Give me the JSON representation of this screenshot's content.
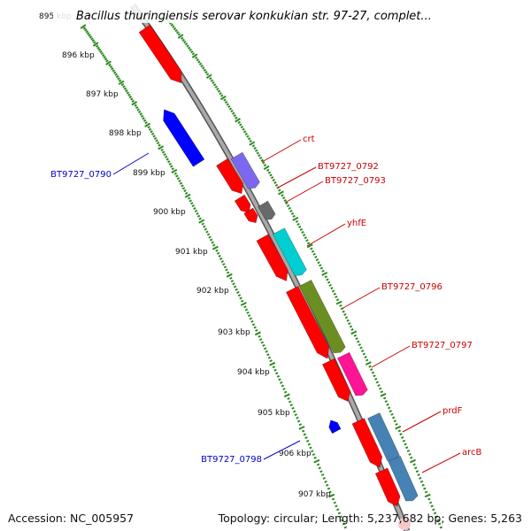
{
  "title": "Bacillus thuringiensis serovar konkukian str. 97-27, complet...",
  "footer": {
    "accession": "Accession: NC_005957",
    "summary": "Topology: circular; Length: 5,237,682 bp; Genes: 5,263"
  },
  "colors": {
    "cds_forward": "#ff0000",
    "cds_reverse": "#0000ff",
    "backbone": "#8a8a8a",
    "tick": "#2e8b22",
    "label_forward": "#cc0000",
    "label_reverse": "#0000cc"
  },
  "ruler": [
    {
      "kbp": 895,
      "label": "895 kbp"
    },
    {
      "kbp": 896,
      "label": "896 kbp"
    },
    {
      "kbp": 897,
      "label": "897 kbp"
    },
    {
      "kbp": 898,
      "label": "898 kbp"
    },
    {
      "kbp": 899,
      "label": "899 kbp"
    },
    {
      "kbp": 900,
      "label": "900 kbp"
    },
    {
      "kbp": 901,
      "label": "901 kbp"
    },
    {
      "kbp": 902,
      "label": "902 kbp"
    },
    {
      "kbp": 903,
      "label": "903 kbp"
    },
    {
      "kbp": 904,
      "label": "904 kbp"
    },
    {
      "kbp": 905,
      "label": "905 kbp"
    },
    {
      "kbp": 906,
      "label": "906 kbp"
    },
    {
      "kbp": 907,
      "label": "907 kbp"
    }
  ],
  "genes": [
    {
      "label": "BT9727_0790",
      "strand": "-",
      "color": "#0000ff"
    },
    {
      "label": "crt",
      "strand": "+",
      "color": "#7b68ee"
    },
    {
      "label": "BT9727_0792",
      "strand": "+",
      "color": "#ff0000"
    },
    {
      "label": "BT9727_0793",
      "strand": "+",
      "color": "#696969"
    },
    {
      "label": "yhfE",
      "strand": "+",
      "color": "#00ced1"
    },
    {
      "label": "BT9727_0796",
      "strand": "+",
      "color": "#6b8e23"
    },
    {
      "label": "BT9727_0797",
      "strand": "+",
      "color": "#ff1493"
    },
    {
      "label": "BT9727_0798",
      "strand": "-",
      "color": "#0000ff"
    },
    {
      "label": "prdF",
      "strand": "+",
      "color": "#4682b4"
    },
    {
      "label": "arcB",
      "strand": "+",
      "color": "#4682b4"
    }
  ]
}
